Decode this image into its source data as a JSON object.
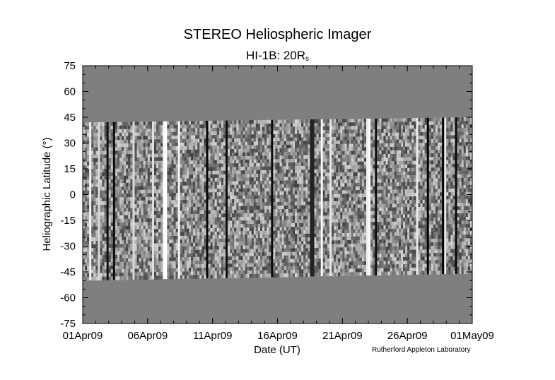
{
  "title": "STEREO Heliospheric Imager",
  "subtitle_main": "HI-1B: 20R",
  "subtitle_sub": "s",
  "credit": "Rutherford Appleton Laboratory",
  "chart_data": {
    "type": "heatmap",
    "title": "STEREO Heliospheric Imager",
    "subtitle": "HI-1B: 20Rs",
    "xlabel": "Date (UT)",
    "ylabel": "Heliographic Latitude (°)",
    "x_tick_labels": [
      "01Apr09",
      "06Apr09",
      "11Apr09",
      "16Apr09",
      "21Apr09",
      "26Apr09",
      "01May09"
    ],
    "xlim": [
      "2009-04-01",
      "2009-05-01"
    ],
    "y_ticks": [
      75,
      60,
      45,
      30,
      15,
      0,
      -15,
      -30,
      -45,
      -60,
      -75
    ],
    "ylim": [
      -75,
      75
    ],
    "data_band_latitude": {
      "top_start": 42,
      "top_end": 45,
      "bottom_start": -50,
      "bottom_end": -46
    },
    "colormap": "grayscale",
    "background_fill": "#7f7f7f",
    "grid": false
  }
}
